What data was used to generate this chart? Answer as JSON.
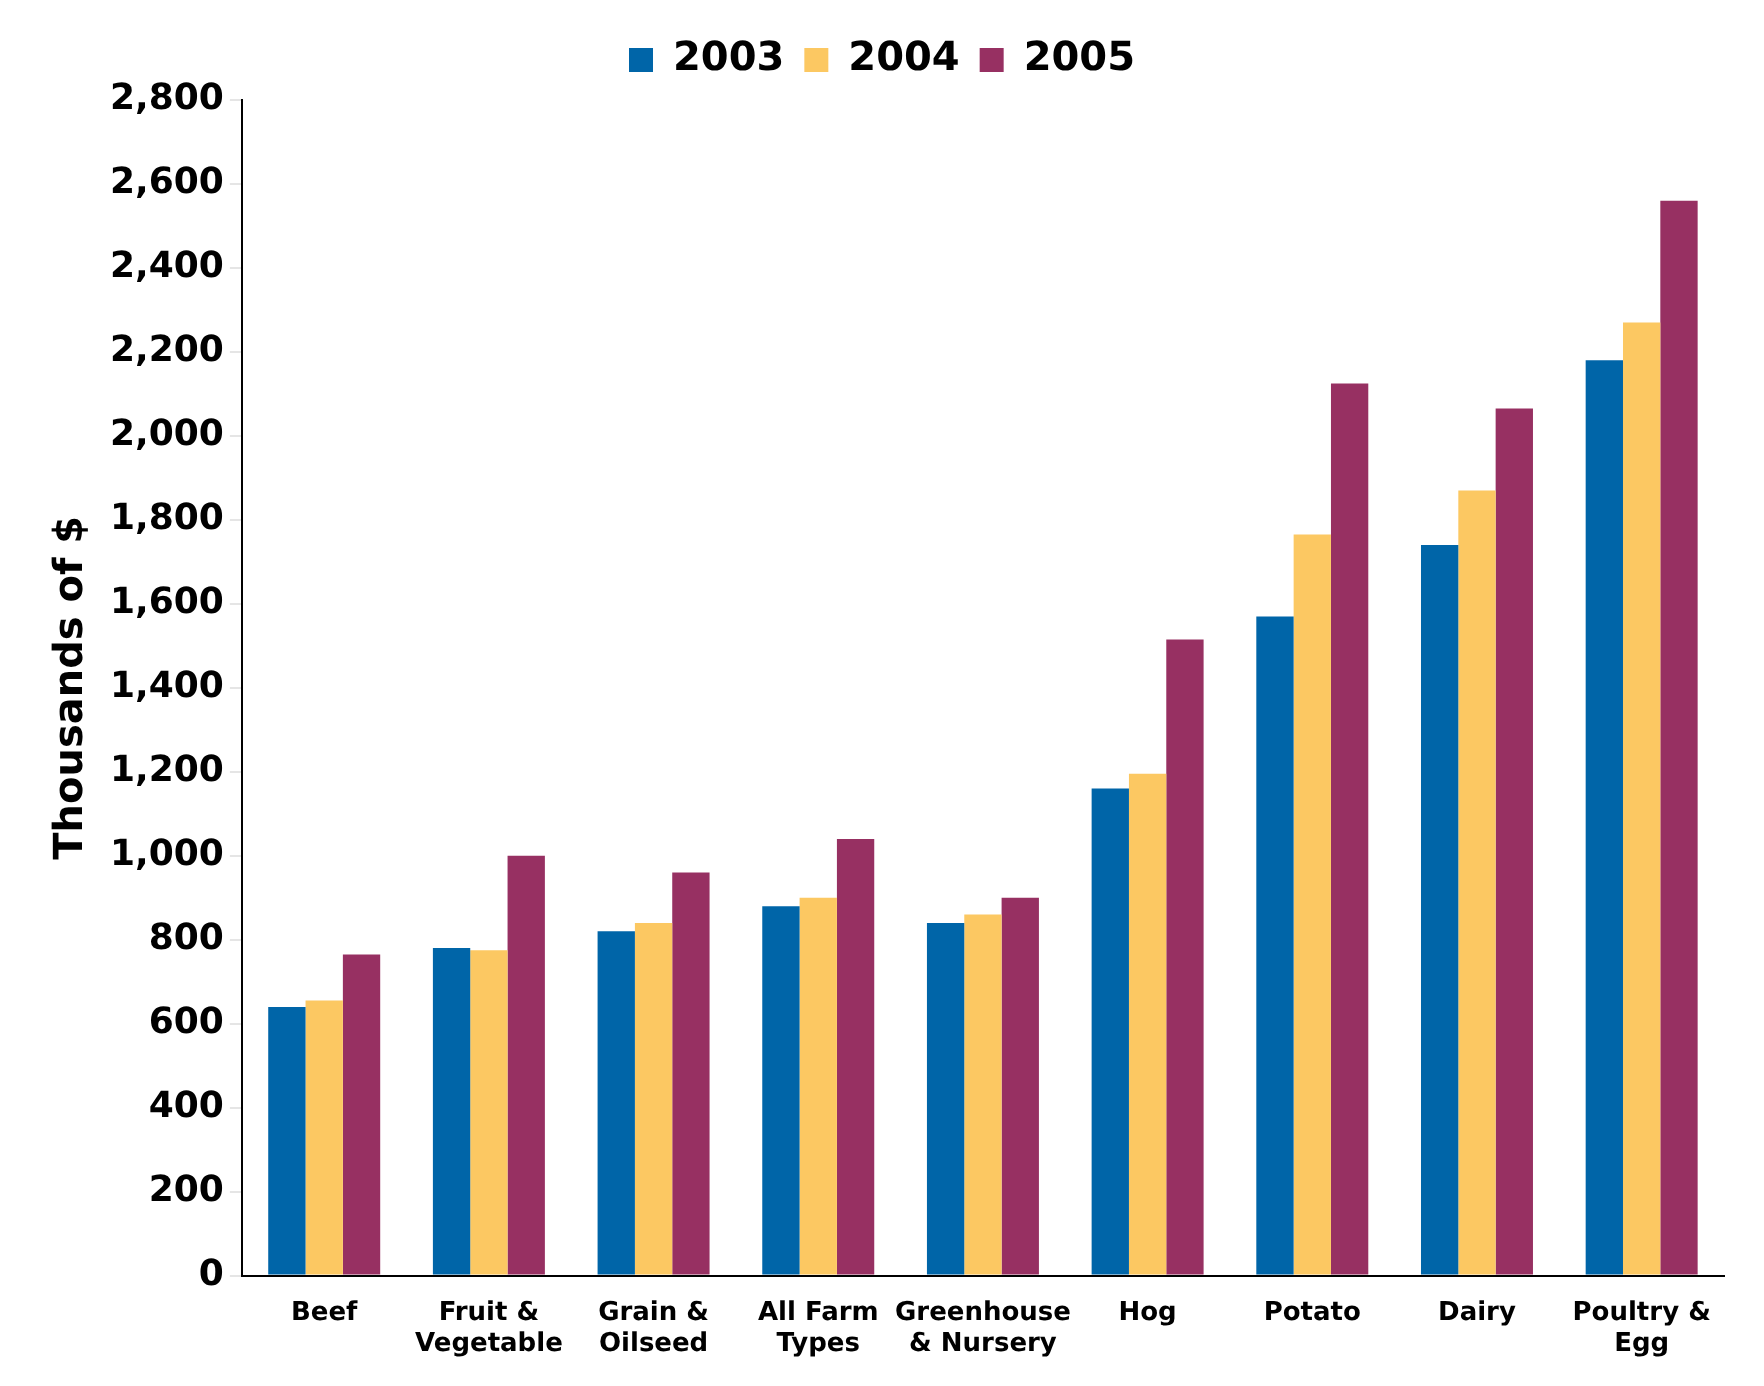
{
  "chart_data": {
    "type": "bar",
    "ylabel": "Thousands of $",
    "categories": [
      "Beef",
      "Fruit & Vegetable",
      "Grain & Oilseed",
      "All Farm Types",
      "Greenhouse & Nursery",
      "Hog",
      "Potato",
      "Dairy",
      "Poultry & Egg"
    ],
    "series": [
      {
        "name": "2003",
        "color": "#0065a8",
        "values": [
          640,
          780,
          820,
          880,
          840,
          1160,
          1570,
          1740,
          2180
        ]
      },
      {
        "name": "2004",
        "color": "#fcc862",
        "values": [
          655,
          775,
          840,
          900,
          860,
          1195,
          1765,
          1870,
          2270
        ]
      },
      {
        "name": "2005",
        "color": "#973062",
        "values": [
          765,
          1000,
          960,
          1040,
          900,
          1515,
          2125,
          2065,
          2560
        ]
      }
    ],
    "ylim": [
      0,
      2800
    ],
    "yticks": [
      0,
      200,
      400,
      600,
      800,
      {
        "value": 1000,
        "label": "1,000"
      },
      {
        "value": 1200,
        "label": "1,200"
      },
      {
        "value": 1400,
        "label": "1,400"
      },
      {
        "value": 1600,
        "label": "1,600"
      },
      {
        "value": 1800,
        "label": "1,800"
      },
      {
        "value": 2000,
        "label": "2,000"
      },
      {
        "value": 2200,
        "label": "2,200"
      },
      {
        "value": 2400,
        "label": "2,400"
      },
      {
        "value": 2600,
        "label": "2,600"
      },
      {
        "value": 2800,
        "label": "2,800"
      }
    ],
    "grid": false,
    "legend": "top"
  }
}
